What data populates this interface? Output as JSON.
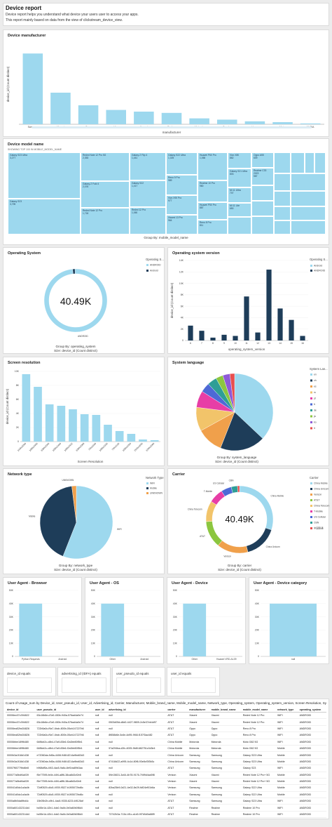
{
  "header": {
    "title": "Device report",
    "desc1": "Device report helps you understand what device your users user to access your apps.",
    "desc2": "This report mainly based on data from the view of clickstream_device_view."
  },
  "colors": {
    "light": "#9dd8ee",
    "dark": "#1e3d59",
    "orange": "#f0a04b",
    "axis": "#888888"
  },
  "manufacturer": {
    "title": "Device manufacturer",
    "chart_data": {
      "type": "bar",
      "categories": [
        "Samsung",
        "Xiaomi",
        "Oppo",
        "Vivo",
        "Huawei",
        "Realme",
        "Motorola",
        "Oneplus",
        "Honor",
        "Meizu",
        "NUBIA"
      ],
      "values": [
        168,
        75,
        45,
        34,
        30,
        27,
        14,
        11,
        7,
        5,
        2
      ],
      "xlabel": "manufacturer",
      "ylabel": "device_id (Count distinct)",
      "ylim": [
        0,
        190
      ]
    }
  },
  "treemap": {
    "title": "Device model name",
    "subtitle": "SHOWING TOP 100 IN MOBILE_MODEL_NAME",
    "caption": "Group By: mobile_model_name",
    "chart_data": {
      "type": "treemap",
      "cells": [
        {
          "label": "Galaxy S23 Ultra",
          "value": "3,277"
        },
        {
          "label": "Galaxy S23",
          "value": "3,799"
        },
        {
          "label": "Redmi Note 12 Pro 5G",
          "value": "2,353"
        },
        {
          "label": "Galaxy Z Fold 4",
          "value": "2,076"
        },
        {
          "label": "Redmi Note 12 Pro",
          "value": "1,718"
        },
        {
          "label": "Galaxy Z Flip 4",
          "value": "1,441"
        },
        {
          "label": "Galaxy S22",
          "value": "1,417"
        },
        {
          "label": "Redmi 12 Pro",
          "value": "1,060"
        },
        {
          "label": "Galaxy S22 Ultra",
          "value": "1,025"
        },
        {
          "label": "Reno 9 Pro",
          "value": "989"
        },
        {
          "label": "Vivo X90 Pro",
          "value": "977"
        },
        {
          "label": "Xiaomi 13 Pro",
          "value": "964"
        },
        {
          "label": "Huawei P60 Pro",
          "value": "1,066"
        },
        {
          "label": "Realme 10 Pro",
          "value": "980"
        },
        {
          "label": "Huawei P50 Pro",
          "value": "887"
        },
        {
          "label": "Reno 8 Pro",
          "value": "811"
        },
        {
          "label": "Vivo X80",
          "value": "862"
        },
        {
          "label": "Galaxy S21 Ultra",
          "value": "803"
        },
        {
          "label": "Mi 11 Ultra",
          "value": "707"
        },
        {
          "label": "Mi 11 Lite",
          "value": "650"
        },
        {
          "label": "Oppo A55",
          "value": "609"
        },
        {
          "label": "Realme C33 2023",
          "value": "587"
        }
      ]
    }
  },
  "os": {
    "title": "Operating System",
    "total": "40.49K",
    "legend_title": "Operating S...",
    "caption1": "Group By: operating_system",
    "caption2": "Size: device_id (Count distinct)",
    "chart_data": {
      "type": "pie",
      "labels": [
        "ANDROID",
        "Android"
      ],
      "values": [
        40000,
        490
      ],
      "colors": [
        "#9dd8ee",
        "#1e3d59"
      ]
    }
  },
  "osver": {
    "title": "Operating system version",
    "legend_title": "Operating S...",
    "chart_data": {
      "type": "bar",
      "categories": [
        "6",
        "7",
        "8",
        "9",
        "10",
        "11",
        "12",
        "13",
        "14",
        "15",
        "16"
      ],
      "series": [
        {
          "name": "Android",
          "values": [
            0,
            0,
            0,
            0,
            0,
            0,
            0,
            0,
            0,
            0,
            0
          ]
        },
        {
          "name": "ANDROID",
          "values": [
            2600,
            1700,
            500,
            1000,
            800,
            7700,
            1400,
            12400,
            5600,
            3600,
            800
          ]
        }
      ],
      "xlabel": "operating_system_version",
      "ylabel": "device_id (Count distinct)",
      "ylim": [
        0,
        14000
      ],
      "yticks": [
        "0",
        "2K",
        "4K",
        "6K",
        "8K",
        "10K",
        "12K",
        "14K"
      ]
    }
  },
  "resolution": {
    "title": "Screen resolution",
    "chart_data": {
      "type": "bar",
      "categories": [
        "1440x3200",
        "1080x2400",
        "1080x2340",
        "1080x2460",
        "1080x2412",
        "1080x2388",
        "720x1600",
        "1080x2160",
        "720x1520",
        "1080x1920",
        "2560x1600",
        "1200x2000"
      ],
      "values": [
        9600,
        7800,
        5300,
        5100,
        4600,
        3900,
        3800,
        2400,
        1500,
        1100,
        300,
        200
      ],
      "xlabel": "Screen Resolution",
      "ylabel": "device_id (Count distinct)",
      "ylim": [
        0,
        10000
      ],
      "yticks": [
        "0",
        "2K",
        "4K",
        "6K",
        "8K",
        "10K"
      ]
    }
  },
  "language": {
    "title": "System language",
    "legend_title": "System Lan...",
    "caption1": "Group By: system_language",
    "caption2": "Size: device_id (Count distinct)",
    "chart_data": {
      "type": "pie",
      "labels": [
        "en",
        "zh",
        "es",
        "ru",
        "pt",
        "fr",
        "de",
        "ja",
        "ko",
        "it"
      ],
      "values": [
        37,
        19,
        11,
        10,
        7,
        4,
        4,
        3,
        3,
        2
      ],
      "colors": [
        "#9dd8ee",
        "#1e3d59",
        "#f0a04b",
        "#f2c46a",
        "#e73ea6",
        "#4d69d6",
        "#2e9e96",
        "#8cc63f",
        "#8e5ad6",
        "#e84e4e"
      ]
    }
  },
  "network": {
    "title": "Network type",
    "legend_title": "Network Type",
    "caption1": "Group By: network_type",
    "caption2": "Size: device_id (Count distinct)",
    "chart_data": {
      "type": "pie",
      "labels": [
        "WIFI",
        "Mobile",
        "UNKNOWN"
      ],
      "values": [
        56,
        42,
        2
      ],
      "colors": [
        "#9dd8ee",
        "#1e3d59",
        "#f0a04b"
      ]
    }
  },
  "carrier": {
    "title": "Carrier",
    "total": "40.49K",
    "legend_title": "Carrier",
    "caption1": "Group By: carrier",
    "caption2": "Size: device_id (Count distinct)",
    "chart_data": {
      "type": "pie",
      "labels": [
        "China Mobile",
        "China Unicom",
        "Verizon",
        "AT&T",
        "China Telecom",
        "T-Mobile",
        "US Cellular",
        "CBN",
        "中国联通"
      ],
      "values": [
        30,
        16,
        15,
        13,
        10,
        7,
        5,
        3,
        1
      ],
      "colors": [
        "#9dd8ee",
        "#1e3d59",
        "#f0a04b",
        "#8cc63f",
        "#f2c46a",
        "#e73ea6",
        "#4d69d6",
        "#2e9e96",
        "#e84e4e"
      ]
    }
  },
  "ua_browser": {
    "title": "User Agent - Browser",
    "chart_data": {
      "type": "bar",
      "categories": [
        "Python Requests",
        "Android"
      ],
      "values": [
        40000,
        0
      ],
      "ylim": [
        0,
        50000
      ],
      "yticks": [
        "0",
        "10K",
        "20K",
        "30K",
        "40K",
        "50K"
      ]
    }
  },
  "ua_os": {
    "title": "User Agent - OS",
    "chart_data": {
      "type": "bar",
      "categories": [
        "Other",
        "Android"
      ],
      "values": [
        40000,
        0
      ],
      "ylim": [
        0,
        50000
      ],
      "yticks": [
        "0",
        "10K",
        "20K",
        "30K",
        "40K",
        "50K"
      ]
    }
  },
  "ua_device": {
    "title": "User Agent - Device",
    "chart_data": {
      "type": "bar",
      "categories": [
        "Other",
        "Huawei VRD-AL09"
      ],
      "values": [
        40000,
        0
      ],
      "ylim": [
        0,
        50000
      ],
      "yticks": [
        "0",
        "10K",
        "20K",
        "30K",
        "40K",
        "50K"
      ]
    }
  },
  "ua_devcat": {
    "title": "User Agent - Device category",
    "chart_data": {
      "type": "bar",
      "categories": [
        "null"
      ],
      "values": [
        40000
      ],
      "ylim": [
        0,
        50000
      ],
      "yticks": [
        "0",
        "10K",
        "20K",
        "30K",
        "40K",
        "50K"
      ]
    }
  },
  "filters": [
    "device_id equals",
    "advertising_id (IDFA) equals",
    "user_pseudo_id equals",
    "user_id equals"
  ],
  "table": {
    "title": "Count of Usage_num by Device_id, User_pseudo_id, User_id, Advertising_id, Carrier, Manufacturer, Mobile_brand_name, Mobile_model_name, Network_type, Operating_system, Operating_system_version, Screen Resolution, System_language, T...",
    "columns": [
      "device_id",
      "user_pseudo_id",
      "user_id",
      "advertising_id",
      "carrier",
      "manufacturer",
      "mobile_brand_name",
      "mobile_model_name",
      "network_type",
      "operating_system"
    ],
    "rows": [
      [
        "00006ec07c394822",
        "63c16b6e-d7a9-450b-940a-576ad4a0e74",
        "null",
        "null",
        "AT&T",
        "Xiaomi",
        "Xiaomi",
        "Redmi Note 12 Pro",
        "WIFI",
        "ANDROID"
      ],
      [
        "00006ec07c394822",
        "63c16b6e-d7a9-450b-940a-576ad4a0e74",
        "null",
        "0503d05d-d8d0-4427-9809-2c5e37eb4d97",
        "AT&T",
        "Xiaomi",
        "Xiaomi",
        "Redmi Note 12 Pro",
        "WIFI",
        "ANDROID"
      ],
      [
        "00006ea52bd34826",
        "722b5a0c-f9a7-4bcb-800b-05cb147227b6",
        "null",
        "null",
        "AT&T",
        "Oppo",
        "Oppo",
        "Reno 8 Pro",
        "WIFI",
        "ANDROID"
      ],
      [
        "00006ea52bd34826",
        "722b5a0c-f9a7-4bcb-800b-05cb147227b6",
        "null",
        "8f658d6e-5c6e-4d95-9f48-f157f3ac482",
        "AT&T",
        "Oppo",
        "Oppo",
        "Reno 8 Pro",
        "WIFI",
        "ANDROID"
      ],
      [
        "00006bbe189f6480",
        "64f8cb2c-c8b4-47a9-83b6-f2a3bb50f5b1",
        "null",
        "null",
        "China Mobile",
        "Motorola",
        "Motorola",
        "Moto G82 5G",
        "WIFI",
        "ANDROID"
      ],
      [
        "00006bbe189f6480",
        "64f8cb2c-c8b4-47a9-83b6-f2a3bb50f5b1",
        "null",
        "57a294ba-d2fc-4005-9b8f-682751c0d3e4",
        "China Mobile",
        "Motorola",
        "Motorola",
        "Moto G82 5G",
        "Mobile",
        "ANDROID"
      ],
      [
        "0000b3a1f18d1438",
        "e72060da-9d5a-4408-946f-8214a9bd63d3",
        "null",
        "null",
        "China Unicom",
        "Samsung",
        "Samsung",
        "Galaxy S23 Ultra",
        "Mobile",
        "ANDROID"
      ],
      [
        "0000b3a1f18d1438",
        "e72060da-9d5a-4408-946f-8214a9bd63d3",
        "null",
        "67418d22-a995-4c1d-80f6-93e8cf3f3b3c",
        "China Unicom",
        "Samsung",
        "Samsung",
        "Galaxy S23 Ultra",
        "Mobile",
        "ANDROID"
      ],
      [
        "00007f60779bd6e8",
        "b968df5a-4f43-4ac5-9a6c-8ef1ba89b3aa",
        "null",
        "null",
        "AT&T",
        "Samsung",
        "Samsung",
        "Galaxy S23",
        "WIFI",
        "ANDROID"
      ],
      [
        "000077a5bdf4a039",
        "f5e77595-fe4b-44f4-a8f6-38ca8d3cf2e8",
        "null",
        "59e15631-3c64-4b78-9176-7f4f9d4ad0f8",
        "Verizon",
        "Xiaomi",
        "Xiaomi",
        "Redmi Note 12 Pro+ 5G",
        "Mobile",
        "ANDROID"
      ],
      [
        "000077a5bdf4a039",
        "f5e77595-fe4b-44f4-a8f6-38ca8d3cf2e8",
        "null",
        "null",
        "Verizon",
        "Xiaomi",
        "Xiaomi",
        "Redmi Note 12 Pro+ 5G",
        "Mobile",
        "ANDROID"
      ],
      [
        "000041d0dc1a4a4b",
        "72df0529-d4c5-4939-9527-b1f05072bd6c",
        "null",
        "82ba25b9-0d21-4e02-8e29-fdf24ef01b6a",
        "Verizon",
        "Samsung",
        "Samsung",
        "Galaxy S22 Ultra",
        "Mobile",
        "ANDROID"
      ],
      [
        "000041d0dc1a4a4b",
        "72df0529-d4c5-4939-9527-b1f05072bd6c",
        "null",
        "null",
        "Verizon",
        "Samsung",
        "Samsung",
        "Galaxy S22 Ultra",
        "Mobile",
        "ANDROID"
      ],
      [
        "0000a8b0da6fbd4c",
        "15b05b2b-c9b1-4ac5-9335-622144f126af",
        "null",
        "null",
        "AT&T",
        "Samsung",
        "Samsung",
        "Galaxy S23 Ultra",
        "WIFI",
        "ANDROID"
      ],
      [
        "0000a601432314d4",
        "bc55e1d-42b1-4dc0-9a4b-0e0a60b0f8d4",
        "null",
        "null",
        "AT&T",
        "Realme",
        "Realme",
        "Realme 10 Pro",
        "WIFI",
        "ANDROID"
      ],
      [
        "0000a601432314d4",
        "bc55e1d-42b1-4dc0-9a4b-0e0a60b0f8d4",
        "null",
        "73742b3a-713d-4f1c-a1d0-9f7b5d0a68f9",
        "AT&T",
        "Realme",
        "Realme",
        "Realme 10 Pro",
        "WIFI",
        "ANDROID"
      ],
      [
        "0000cb9f2c7b6f5f",
        "7a2f770e-7b6e-4fd1-b3f1-f4c2a3e9f0e7",
        "null",
        "null",
        "Verizon",
        "Xiaomi",
        "Xiaomi",
        "Xiaomi 13T 5G",
        "Mobile",
        "ANDROID"
      ],
      [
        "0000c2b6d0e7e43",
        "7a2f770e-7b6e-4fd1-b3f1-f4c2a3e9f0e7",
        "null",
        "52e4fa8c-c9e0-4a73-9f2b-1d7e9a3b5c88",
        "China Mobile",
        "Samsung",
        "Samsung",
        "Galaxy S23 Ultra",
        "Mobile",
        "ANDROID"
      ],
      [
        "0000c18ef67bc6d0b",
        "e9be995e-a7f0-4693-ab93-1503bd2d1e53",
        "null",
        "null",
        "China Mobile",
        "Xiaomi",
        "Xiaomi",
        "Redmi Note 12 Pro",
        "Mobile",
        "ANDROID"
      ],
      [
        "0000dc8ab19d0daa",
        "9cd6a2d1-4b57-4e2b-8f3a-1ae6a3aa9d92",
        "null",
        "null",
        "China Unicom",
        "Samsung",
        "Samsung",
        "Galaxy Z Fold 4",
        "WIFI",
        "ANDROID"
      ],
      [
        "0000dc8ab19d0daa",
        "9cd6a2d1-4b57-4e2b-8f3a-1ae6a3aa9d92",
        "null",
        "null",
        "China Unicom",
        "Samsung",
        "Samsung",
        "Galaxy Z Fold 4",
        "WIFI",
        "ANDROID"
      ]
    ]
  }
}
